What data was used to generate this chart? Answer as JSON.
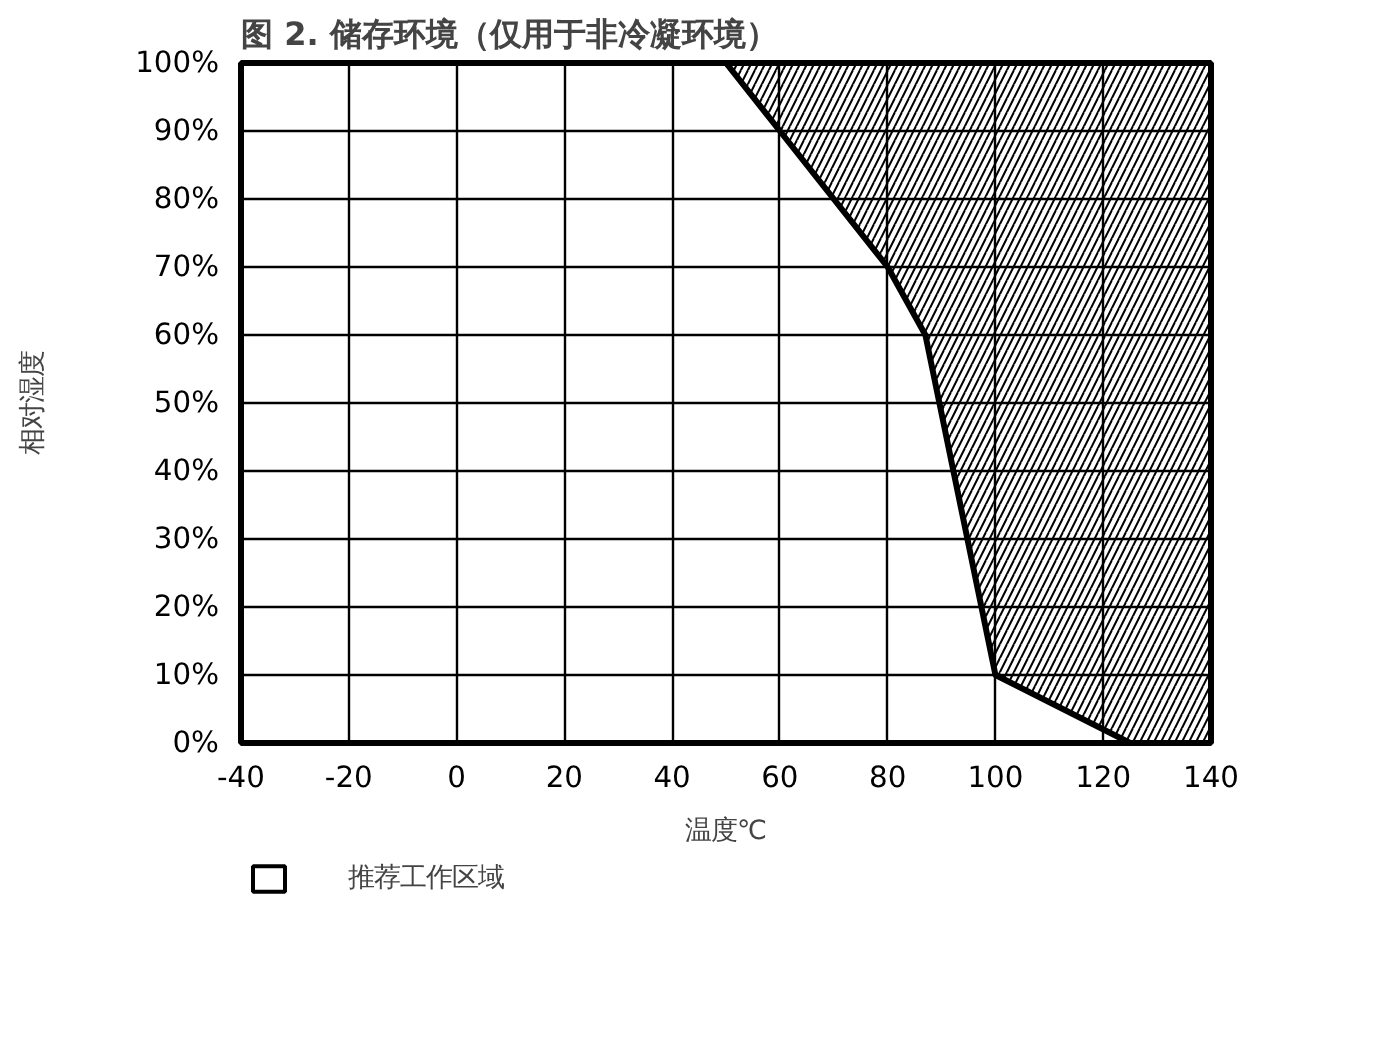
{
  "chart_data": {
    "type": "area",
    "title": "图 2. 储存环境（仅用于非冷凝环境）",
    "xlabel": "温度℃",
    "ylabel": "相对湿度",
    "x": [
      50,
      60,
      80,
      87,
      100,
      125,
      140,
      140
    ],
    "series": [
      {
        "name": "推荐工作区域",
        "color": "#000000",
        "values": [
          100,
          90,
          70,
          60,
          10,
          0,
          0,
          100
        ]
      }
    ],
    "xlim": [
      -40,
      140
    ],
    "xticks": [
      -40,
      -20,
      0,
      20,
      40,
      60,
      80,
      100,
      120,
      140
    ],
    "ylim": [
      0,
      100
    ],
    "yticks": [
      {
        "value": 0,
        "label": "0%"
      },
      {
        "value": 10,
        "label": "10%"
      },
      {
        "value": 20,
        "label": "20%"
      },
      {
        "value": 30,
        "label": "30%"
      },
      {
        "value": 40,
        "label": "40%"
      },
      {
        "value": 50,
        "label": "50%"
      },
      {
        "value": 60,
        "label": "60%"
      },
      {
        "value": 70,
        "label": "70%"
      },
      {
        "value": 80,
        "label": "80%"
      },
      {
        "value": 90,
        "label": "90%"
      },
      {
        "value": 100,
        "label": "100%"
      }
    ],
    "grid": true,
    "legend": "bottom left",
    "marker": "none",
    "line_style": "solid"
  }
}
